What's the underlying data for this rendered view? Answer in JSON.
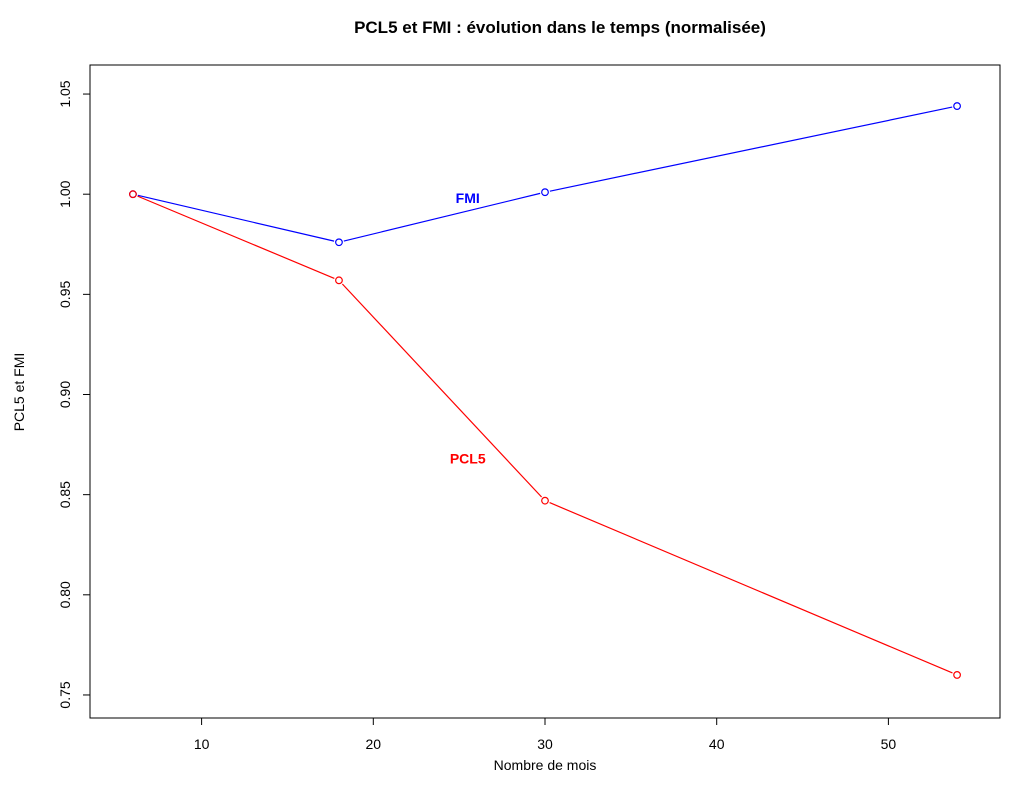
{
  "chart_data": {
    "type": "line",
    "title": "PCL5 et FMI : évolution dans le temps (normalisée)",
    "xlabel": "Nombre de mois",
    "ylabel": "PCL5 et FMI",
    "x": [
      6,
      18,
      30,
      54
    ],
    "xlim": [
      3.5,
      56.5
    ],
    "ylim": [
      0.7385,
      1.0645
    ],
    "x_ticks": [
      10,
      20,
      30,
      40,
      50
    ],
    "y_ticks": [
      0.75,
      0.8,
      0.85,
      0.9,
      0.95,
      1.0,
      1.05
    ],
    "x_tick_labels": [
      "10",
      "20",
      "30",
      "40",
      "50"
    ],
    "y_tick_labels": [
      "0.75",
      "0.80",
      "0.85",
      "0.90",
      "0.95",
      "1.00",
      "1.05"
    ],
    "grid": false,
    "legend": "none",
    "series": [
      {
        "name": "FMI",
        "color": "#0000ff",
        "values": [
          1.0,
          0.976,
          1.001,
          1.044
        ],
        "label_at": [
          25.5,
          0.998
        ]
      },
      {
        "name": "PCL5",
        "color": "#ff0000",
        "values": [
          1.0,
          0.957,
          0.847,
          0.76
        ],
        "label_at": [
          25.5,
          0.868
        ]
      }
    ]
  }
}
